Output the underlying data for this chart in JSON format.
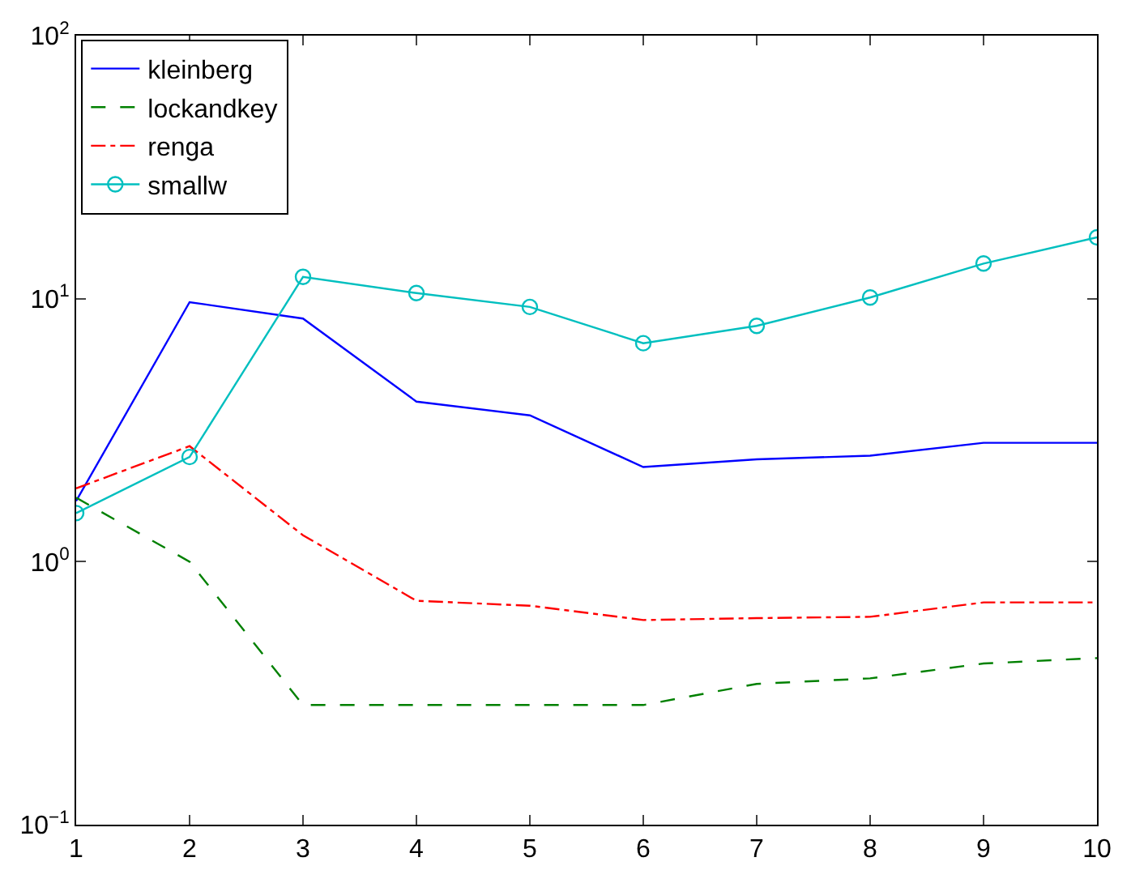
{
  "chart_data": {
    "type": "line",
    "x": [
      1,
      2,
      3,
      4,
      5,
      6,
      7,
      8,
      9,
      10
    ],
    "series": [
      {
        "name": "kleinberg",
        "color": "#0000ff",
        "line_style": "solid",
        "marker": "none",
        "values": [
          1.7,
          9.7,
          8.4,
          4.06,
          3.6,
          2.29,
          2.45,
          2.53,
          2.83,
          2.83
        ]
      },
      {
        "name": "lockandkey",
        "color": "#008000",
        "line_style": "dashed",
        "marker": "none",
        "values": [
          1.75,
          1.0,
          0.285,
          0.285,
          0.285,
          0.285,
          0.343,
          0.36,
          0.41,
          0.43
        ]
      },
      {
        "name": "renga",
        "color": "#ff0000",
        "line_style": "dashdot",
        "marker": "none",
        "values": [
          1.9,
          2.75,
          1.26,
          0.71,
          0.68,
          0.6,
          0.61,
          0.617,
          0.7,
          0.7
        ]
      },
      {
        "name": "smallw",
        "color": "#00bfbf",
        "line_style": "solid",
        "marker": "circle",
        "values": [
          1.53,
          2.5,
          12.1,
          10.5,
          9.3,
          6.77,
          7.88,
          10.1,
          13.6,
          17.1
        ]
      }
    ],
    "xlim": [
      1,
      10
    ],
    "xticks": [
      1,
      2,
      3,
      4,
      5,
      6,
      7,
      8,
      9,
      10
    ],
    "ylim": [
      0.1,
      100
    ],
    "yticks": [
      {
        "value": 0.1,
        "label": "10$^{−1}$"
      },
      {
        "value": 1,
        "label": "10$^{0}$"
      },
      {
        "value": 10,
        "label": "10$^{1}$"
      },
      {
        "value": 100,
        "label": "10$^{2}$"
      }
    ],
    "log": "y",
    "grid": false,
    "legend": "top left"
  }
}
